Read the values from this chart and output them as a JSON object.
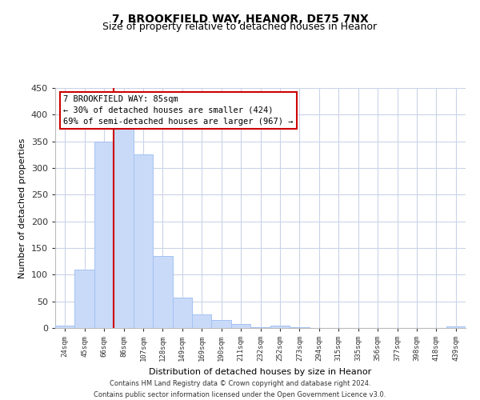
{
  "title": "7, BROOKFIELD WAY, HEANOR, DE75 7NX",
  "subtitle": "Size of property relative to detached houses in Heanor",
  "xlabel": "Distribution of detached houses by size in Heanor",
  "ylabel": "Number of detached properties",
  "bin_labels": [
    "24sqm",
    "45sqm",
    "66sqm",
    "86sqm",
    "107sqm",
    "128sqm",
    "149sqm",
    "169sqm",
    "190sqm",
    "211sqm",
    "232sqm",
    "252sqm",
    "273sqm",
    "294sqm",
    "315sqm",
    "335sqm",
    "356sqm",
    "377sqm",
    "398sqm",
    "418sqm",
    "439sqm"
  ],
  "bar_heights": [
    5,
    110,
    350,
    375,
    325,
    135,
    57,
    25,
    15,
    7,
    2,
    5,
    1,
    0,
    0,
    0,
    0,
    0,
    0,
    0,
    3
  ],
  "bar_color": "#c9daf8",
  "bar_edge_color": "#a4c2f4",
  "vline_x_index": 3,
  "vline_color": "#cc0000",
  "annotation_line1": "7 BROOKFIELD WAY: 85sqm",
  "annotation_line2": "← 30% of detached houses are smaller (424)",
  "annotation_line3": "69% of semi-detached houses are larger (967) →",
  "annotation_box_color": "#ffffff",
  "annotation_box_edge": "#cc0000",
  "ylim": [
    0,
    450
  ],
  "yticks": [
    0,
    50,
    100,
    150,
    200,
    250,
    300,
    350,
    400,
    450
  ],
  "footer_line1": "Contains HM Land Registry data © Crown copyright and database right 2024.",
  "footer_line2": "Contains public sector information licensed under the Open Government Licence v3.0.",
  "background_color": "#ffffff",
  "grid_color": "#c9d4e8",
  "title_fontsize": 10,
  "subtitle_fontsize": 9
}
